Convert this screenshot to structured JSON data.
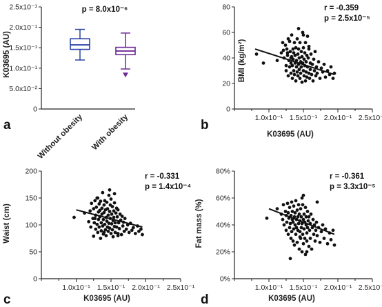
{
  "panels": [
    {
      "letter": "a",
      "chart_data": {
        "type": "boxplot",
        "ylabel": "K03695 (AU)",
        "yticks": [
          "0",
          "5.0x10⁻²",
          "1.0x10⁻¹",
          "1.5x10⁻¹",
          "2.0x10⁻¹",
          "2.5x10⁻¹"
        ],
        "ylim": [
          0,
          0.25
        ],
        "annotation": "p = 8.0x10⁻⁶",
        "groups": [
          {
            "name": "Without obesity",
            "color": "#2a43a8",
            "whisker_low": 0.12,
            "q1": 0.146,
            "median": 0.157,
            "q3": 0.172,
            "whisker_high": 0.195,
            "outliers": []
          },
          {
            "name": "With obesity",
            "color": "#6c2a96",
            "whisker_low": 0.098,
            "q1": 0.133,
            "median": 0.142,
            "q3": 0.151,
            "whisker_high": 0.186,
            "outliers": [
              0.084
            ]
          }
        ]
      }
    },
    {
      "letter": "b",
      "chart_data": {
        "type": "scatter",
        "xlabel": "K03695 (AU)",
        "ylabel": "BMI (kg/m²)",
        "xlim": [
          0.05,
          0.25
        ],
        "ylim": [
          0,
          80
        ],
        "xticks": [
          "1.0x10⁻¹",
          "1.5x10⁻¹",
          "2.0x10⁻¹",
          "2.5x10⁻¹"
        ],
        "yticks": [
          "0",
          "20",
          "40",
          "60",
          "80"
        ],
        "stat_r": "r = -0.359",
        "stat_p": "p = 2.5x10⁻⁵",
        "fit": {
          "x": [
            0.08,
            0.195
          ],
          "y": [
            47,
            27
          ]
        },
        "points": {
          "x": [
            0.082,
            0.092,
            0.112,
            0.118,
            0.12,
            0.121,
            0.122,
            0.124,
            0.125,
            0.125,
            0.126,
            0.127,
            0.128,
            0.128,
            0.129,
            0.13,
            0.13,
            0.131,
            0.132,
            0.132,
            0.133,
            0.133,
            0.134,
            0.134,
            0.135,
            0.135,
            0.136,
            0.136,
            0.137,
            0.137,
            0.138,
            0.138,
            0.139,
            0.139,
            0.14,
            0.14,
            0.141,
            0.141,
            0.142,
            0.142,
            0.143,
            0.143,
            0.144,
            0.144,
            0.145,
            0.145,
            0.146,
            0.146,
            0.147,
            0.147,
            0.148,
            0.148,
            0.149,
            0.149,
            0.15,
            0.15,
            0.151,
            0.151,
            0.152,
            0.152,
            0.153,
            0.153,
            0.154,
            0.154,
            0.155,
            0.155,
            0.156,
            0.156,
            0.157,
            0.158,
            0.158,
            0.159,
            0.16,
            0.16,
            0.161,
            0.162,
            0.163,
            0.164,
            0.165,
            0.166,
            0.167,
            0.168,
            0.169,
            0.17,
            0.172,
            0.174,
            0.176,
            0.178,
            0.18,
            0.182,
            0.185,
            0.188,
            0.19,
            0.193,
            0.195,
            0.143,
            0.15,
            0.158,
            0.132,
            0.127
          ],
          "y": [
            43,
            36,
            38,
            44,
            52,
            46,
            40,
            50,
            30,
            34,
            47,
            42,
            55,
            26,
            38,
            53,
            33,
            45,
            36,
            28,
            41,
            58,
            24,
            34,
            47,
            39,
            30,
            44,
            52,
            27,
            36,
            42,
            22,
            48,
            33,
            38,
            29,
            55,
            26,
            43,
            35,
            47,
            31,
            40,
            24,
            52,
            37,
            28,
            45,
            33,
            41,
            21,
            36,
            60,
            30,
            48,
            26,
            39,
            34,
            44,
            22,
            52,
            37,
            29,
            42,
            25,
            57,
            33,
            40,
            28,
            47,
            24,
            36,
            31,
            43,
            27,
            35,
            22,
            39,
            30,
            45,
            26,
            33,
            28,
            37,
            24,
            32,
            29,
            35,
            25,
            30,
            27,
            33,
            24,
            28,
            63,
            58,
            49,
            40,
            44
          ]
        }
      }
    },
    {
      "letter": "c",
      "chart_data": {
        "type": "scatter",
        "xlabel": "K03695 (AU)",
        "ylabel": "Waist (cm)",
        "xlim": [
          0.05,
          0.25
        ],
        "ylim": [
          0,
          200
        ],
        "xticks": [
          "1.0x10⁻¹",
          "1.5x10⁻¹",
          "2.0x10⁻¹",
          "2.5x10⁻¹"
        ],
        "yticks": [
          "0",
          "50",
          "100",
          "150",
          "200"
        ],
        "stat_r": "r = -0.331",
        "stat_p": "p = 1.4x10⁻⁴",
        "fit": {
          "x": [
            0.1,
            0.195
          ],
          "y": [
            128,
            96
          ]
        },
        "points": {
          "x": [
            0.097,
            0.112,
            0.118,
            0.12,
            0.121,
            0.122,
            0.124,
            0.125,
            0.125,
            0.126,
            0.127,
            0.128,
            0.128,
            0.129,
            0.13,
            0.13,
            0.131,
            0.132,
            0.132,
            0.133,
            0.133,
            0.134,
            0.134,
            0.135,
            0.135,
            0.136,
            0.136,
            0.137,
            0.137,
            0.138,
            0.138,
            0.139,
            0.139,
            0.14,
            0.14,
            0.141,
            0.141,
            0.142,
            0.142,
            0.143,
            0.143,
            0.144,
            0.144,
            0.145,
            0.145,
            0.146,
            0.146,
            0.147,
            0.147,
            0.148,
            0.148,
            0.149,
            0.149,
            0.15,
            0.15,
            0.151,
            0.151,
            0.152,
            0.152,
            0.153,
            0.153,
            0.154,
            0.154,
            0.155,
            0.155,
            0.156,
            0.156,
            0.157,
            0.158,
            0.158,
            0.159,
            0.16,
            0.16,
            0.161,
            0.162,
            0.163,
            0.164,
            0.165,
            0.166,
            0.167,
            0.168,
            0.169,
            0.17,
            0.172,
            0.174,
            0.176,
            0.178,
            0.18,
            0.182,
            0.185,
            0.188,
            0.19,
            0.193,
            0.195,
            0.14,
            0.148,
            0.155,
            0.131,
            0.127,
            0.16
          ],
          "y": [
            114,
            122,
            106,
            126,
            96,
            140,
            112,
            79,
            130,
            104,
            145,
            118,
            92,
            133,
            101,
            150,
            86,
            124,
            110,
            139,
            96,
            127,
            115,
            75,
            144,
            104,
            89,
            131,
            120,
            98,
            160,
            110,
            83,
            137,
            123,
            101,
            145,
            91,
            128,
            114,
            80,
            142,
            107,
            96,
            130,
            118,
            88,
            155,
            103,
            125,
            94,
            137,
            112,
            84,
            148,
            102,
            120,
            91,
            134,
            108,
            78,
            126,
            114,
            97,
            141,
            104,
            86,
            122,
            131,
            96,
            115,
            84,
            128,
            104,
            93,
            120,
            109,
            82,
            116,
            98,
            105,
            88,
            112,
            92,
            100,
            86,
            103,
            90,
            95,
            84,
            98,
            88,
            92,
            82,
            86,
            165,
            158,
            150,
            112,
            80
          ]
        }
      }
    },
    {
      "letter": "d",
      "chart_data": {
        "type": "scatter",
        "xlabel": "K03695 (AU)",
        "ylabel": "Fat mass (%)",
        "xlim": [
          0.05,
          0.25
        ],
        "ylim": [
          0,
          80
        ],
        "xticks": [
          "1.0x10⁻¹",
          "1.5x10⁻¹",
          "2.0x10⁻¹",
          "2.5x10⁻¹"
        ],
        "yticks": [
          "0%",
          "20%",
          "40%",
          "60%",
          "80%"
        ],
        "stat_r": "r = -0.361",
        "stat_p": "p = 3.3x10⁻⁵",
        "fit": {
          "x": [
            0.1,
            0.195
          ],
          "y": [
            52,
            33
          ]
        },
        "points": {
          "x": [
            0.097,
            0.112,
            0.118,
            0.12,
            0.121,
            0.122,
            0.124,
            0.125,
            0.125,
            0.126,
            0.127,
            0.128,
            0.128,
            0.129,
            0.13,
            0.13,
            0.131,
            0.132,
            0.132,
            0.133,
            0.133,
            0.134,
            0.134,
            0.135,
            0.135,
            0.136,
            0.136,
            0.137,
            0.137,
            0.138,
            0.138,
            0.139,
            0.139,
            0.14,
            0.14,
            0.141,
            0.141,
            0.142,
            0.142,
            0.143,
            0.143,
            0.144,
            0.144,
            0.145,
            0.145,
            0.146,
            0.146,
            0.147,
            0.147,
            0.148,
            0.148,
            0.149,
            0.149,
            0.15,
            0.15,
            0.151,
            0.151,
            0.152,
            0.152,
            0.153,
            0.153,
            0.154,
            0.154,
            0.155,
            0.155,
            0.156,
            0.156,
            0.157,
            0.158,
            0.158,
            0.159,
            0.16,
            0.16,
            0.161,
            0.162,
            0.163,
            0.164,
            0.165,
            0.166,
            0.167,
            0.168,
            0.169,
            0.17,
            0.172,
            0.174,
            0.176,
            0.178,
            0.18,
            0.182,
            0.185,
            0.188,
            0.19,
            0.193,
            0.195,
            0.145,
            0.15,
            0.148,
            0.131,
            0.155,
            0.17
          ],
          "y": [
            45,
            52,
            48,
            44,
            55,
            40,
            50,
            36,
            47,
            42,
            56,
            33,
            49,
            45,
            38,
            53,
            41,
            30,
            47,
            57,
            35,
            44,
            50,
            28,
            42,
            54,
            37,
            46,
            25,
            49,
            40,
            33,
            58,
            44,
            38,
            51,
            27,
            46,
            36,
            55,
            41,
            22,
            48,
            35,
            43,
            30,
            52,
            38,
            46,
            20,
            41,
            55,
            33,
            44,
            26,
            48,
            37,
            42,
            30,
            53,
            18,
            40,
            46,
            34,
            28,
            50,
            38,
            43,
            24,
            46,
            36,
            41,
            30,
            48,
            22,
            38,
            44,
            33,
            40,
            28,
            36,
            42,
            32,
            38,
            27,
            35,
            40,
            30,
            37,
            26,
            34,
            29,
            36,
            25,
            31,
            62,
            60,
            15,
            20,
            57
          ]
        }
      }
    }
  ]
}
